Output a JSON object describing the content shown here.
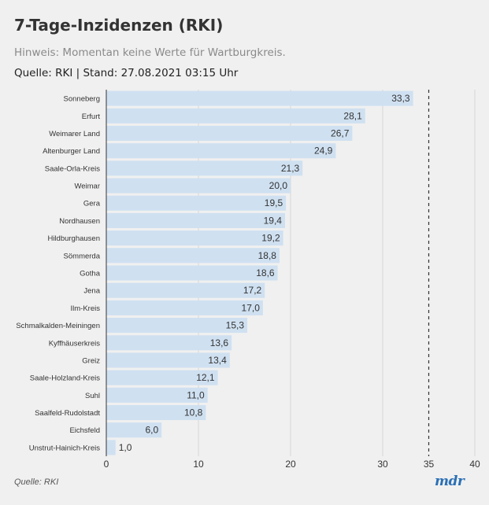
{
  "header": {
    "title": "7-Tage-Inzidenzen (RKI)",
    "subtitle": "Hinweis: Momentan keine Werte für Wartburgkreis.",
    "source_line": "Quelle: RKI | Stand: 27.08.2021 03:15 Uhr"
  },
  "footer": {
    "source": "Quelle: RKI",
    "logo": "mdr"
  },
  "colors": {
    "bar": "#cfe0f1",
    "axis": "#333333",
    "grid": "#d6d6d6",
    "reference": "#333333"
  },
  "chart_data": {
    "type": "bar",
    "orientation": "horizontal",
    "title": "7-Tage-Inzidenzen (RKI)",
    "xlabel": "",
    "ylabel": "",
    "xlim": [
      0,
      40
    ],
    "x_ticks": [
      0,
      10,
      20,
      30,
      35,
      40
    ],
    "x_tick_labels": [
      "0",
      "10",
      "20",
      "30",
      "35",
      "40"
    ],
    "reference_line": 35,
    "grid": "vertical",
    "categories": [
      "Sonneberg",
      "Erfurt",
      "Weimarer Land",
      "Altenburger Land",
      "Saale-Orla-Kreis",
      "Weimar",
      "Gera",
      "Nordhausen",
      "Hildburghausen",
      "Sömmerda",
      "Gotha",
      "Jena",
      "Ilm-Kreis",
      "Schmalkalden-Meiningen",
      "Kyffhäuserkreis",
      "Greiz",
      "Saale-Holzland-Kreis",
      "Suhl",
      "Saalfeld-Rudolstadt",
      "Eichsfeld",
      "Unstrut-Hainich-Kreis"
    ],
    "values": [
      33.3,
      28.1,
      26.7,
      24.9,
      21.3,
      20.0,
      19.5,
      19.4,
      19.2,
      18.8,
      18.6,
      17.2,
      17.0,
      15.3,
      13.6,
      13.4,
      12.1,
      11.0,
      10.8,
      6.0,
      1.0
    ],
    "value_labels": [
      "33,3",
      "28,1",
      "26,7",
      "24,9",
      "21,3",
      "20,0",
      "19,5",
      "19,4",
      "19,2",
      "18,8",
      "18,6",
      "17,2",
      "17,0",
      "15,3",
      "13,6",
      "13,4",
      "12,1",
      "11,0",
      "10,8",
      "6,0",
      "1,0"
    ]
  }
}
